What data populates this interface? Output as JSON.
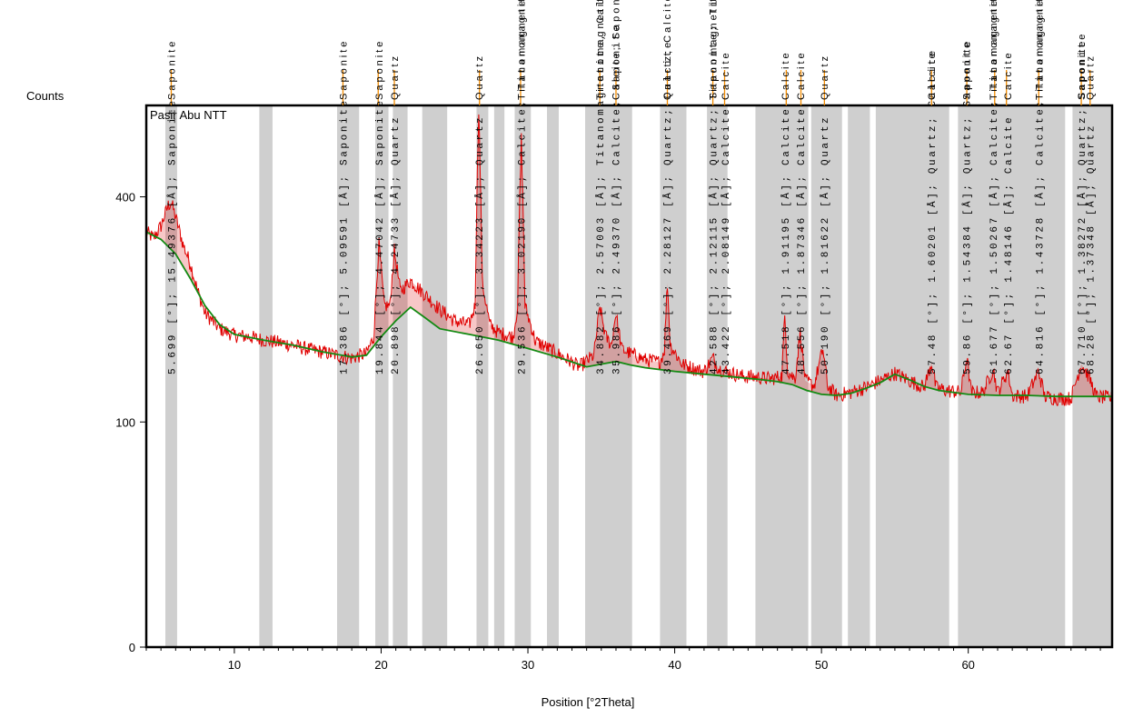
{
  "chart_data": {
    "type": "line",
    "title": "Pasir Abu NTT",
    "xlabel": "Position [°2Theta]",
    "ylabel": "Counts",
    "xlim": [
      4,
      69.8
    ],
    "y_scale": "sqrt",
    "ylim": [
      0,
      575
    ],
    "x_ticks": [
      10,
      20,
      30,
      40,
      50,
      60
    ],
    "y_ticks": [
      0,
      100,
      400
    ],
    "grid": false,
    "series": [
      {
        "role": "pattern",
        "color": "#e00000",
        "points": [
          [
            4,
            340
          ],
          [
            4.5,
            330
          ],
          [
            5,
            350
          ],
          [
            5.5,
            385
          ],
          [
            5.7,
            390
          ],
          [
            6,
            365
          ],
          [
            6.5,
            320
          ],
          [
            7,
            290
          ],
          [
            7.5,
            250
          ],
          [
            8,
            220
          ],
          [
            9,
            200
          ],
          [
            10,
            192
          ],
          [
            11,
            190
          ],
          [
            12,
            186
          ],
          [
            13,
            183
          ],
          [
            14,
            180
          ],
          [
            15,
            175
          ],
          [
            16,
            172
          ],
          [
            17,
            168
          ],
          [
            18,
            165
          ],
          [
            19,
            170
          ],
          [
            19.5,
            190
          ],
          [
            19.85,
            320
          ],
          [
            20.2,
            230
          ],
          [
            20.6,
            230
          ],
          [
            20.9,
            310
          ],
          [
            21.3,
            250
          ],
          [
            22,
            265
          ],
          [
            23,
            245
          ],
          [
            24,
            225
          ],
          [
            25,
            210
          ],
          [
            26,
            205
          ],
          [
            26.4,
            230
          ],
          [
            26.65,
            575
          ],
          [
            26.9,
            260
          ],
          [
            27.4,
            205
          ],
          [
            28,
            195
          ],
          [
            29,
            190
          ],
          [
            29.3,
            230
          ],
          [
            29.55,
            510
          ],
          [
            29.8,
            230
          ],
          [
            30.5,
            185
          ],
          [
            31.5,
            175
          ],
          [
            32.5,
            165
          ],
          [
            33.5,
            155
          ],
          [
            34.5,
            168
          ],
          [
            34.9,
            228
          ],
          [
            35.3,
            190
          ],
          [
            35.7,
            180
          ],
          [
            35.98,
            220
          ],
          [
            36.4,
            175
          ],
          [
            37,
            170
          ],
          [
            38,
            163
          ],
          [
            39,
            160
          ],
          [
            39.3,
            175
          ],
          [
            39.5,
            262
          ],
          [
            39.7,
            180
          ],
          [
            40.5,
            158
          ],
          [
            41.5,
            152
          ],
          [
            42,
            150
          ],
          [
            42.6,
            165
          ],
          [
            43,
            153
          ],
          [
            43.5,
            150
          ],
          [
            44.5,
            145
          ],
          [
            45.5,
            144
          ],
          [
            46.5,
            142
          ],
          [
            47.3,
            145
          ],
          [
            47.5,
            215
          ],
          [
            47.7,
            150
          ],
          [
            48.2,
            142
          ],
          [
            48.55,
            195
          ],
          [
            48.9,
            140
          ],
          [
            49.5,
            135
          ],
          [
            50.1,
            175
          ],
          [
            50.4,
            135
          ],
          [
            51,
            125
          ],
          [
            52,
            128
          ],
          [
            53,
            133
          ],
          [
            54,
            140
          ],
          [
            55,
            148
          ],
          [
            56,
            140
          ],
          [
            57,
            133
          ],
          [
            57.5,
            160
          ],
          [
            57.8,
            133
          ],
          [
            58.5,
            130
          ],
          [
            59.5,
            128
          ],
          [
            59.9,
            165
          ],
          [
            60.2,
            128
          ],
          [
            61,
            128
          ],
          [
            61.7,
            152
          ],
          [
            62,
            128
          ],
          [
            62.7,
            150
          ],
          [
            63,
            125
          ],
          [
            64,
            124
          ],
          [
            64.8,
            150
          ],
          [
            65.2,
            124
          ],
          [
            66,
            122
          ],
          [
            67,
            122
          ],
          [
            67.7,
            158
          ],
          [
            68.2,
            145
          ],
          [
            68.7,
            124
          ],
          [
            69.8,
            122
          ]
        ]
      },
      {
        "role": "background",
        "color": "#138a13",
        "points": [
          [
            4,
            340
          ],
          [
            5,
            328
          ],
          [
            6,
            305
          ],
          [
            7,
            268
          ],
          [
            8,
            230
          ],
          [
            9,
            205
          ],
          [
            10,
            193
          ],
          [
            12,
            186
          ],
          [
            14,
            180
          ],
          [
            16,
            172
          ],
          [
            18,
            166
          ],
          [
            19,
            168
          ],
          [
            20,
            190
          ],
          [
            21,
            210
          ],
          [
            22,
            228
          ],
          [
            23,
            214
          ],
          [
            24,
            200
          ],
          [
            26,
            193
          ],
          [
            28,
            186
          ],
          [
            30,
            176
          ],
          [
            32,
            166
          ],
          [
            34,
            155
          ],
          [
            35,
            158
          ],
          [
            36,
            161
          ],
          [
            37,
            157
          ],
          [
            38,
            154
          ],
          [
            40,
            150
          ],
          [
            42,
            147
          ],
          [
            44,
            144
          ],
          [
            46,
            141
          ],
          [
            47,
            139
          ],
          [
            48,
            136
          ],
          [
            49,
            130
          ],
          [
            50,
            126
          ],
          [
            51,
            125
          ],
          [
            52,
            127
          ],
          [
            53,
            132
          ],
          [
            54,
            138
          ],
          [
            55,
            147
          ],
          [
            56,
            141
          ],
          [
            57,
            134
          ],
          [
            58,
            130
          ],
          [
            60,
            126
          ],
          [
            62,
            125
          ],
          [
            64,
            125
          ],
          [
            66,
            124
          ],
          [
            68,
            124
          ],
          [
            69.8,
            124
          ]
        ]
      }
    ],
    "excluded_ranges": [
      [
        5.3,
        6.1
      ],
      [
        11.7,
        12.6
      ],
      [
        17,
        18.5
      ],
      [
        19.6,
        20.5
      ],
      [
        20.8,
        21.8
      ],
      [
        22.8,
        24.5
      ],
      [
        26.5,
        27.3
      ],
      [
        27.7,
        28.4
      ],
      [
        29.1,
        30.2
      ],
      [
        31.3,
        32.1
      ],
      [
        33.9,
        37.1
      ],
      [
        39,
        40.8
      ],
      [
        42.2,
        43.6
      ],
      [
        45.5,
        49.1
      ],
      [
        49.3,
        51.4
      ],
      [
        51.8,
        53.3
      ],
      [
        53.7,
        58.7
      ],
      [
        59.3,
        66.6
      ],
      [
        67.1,
        69.8
      ]
    ],
    "reference_ticks": [
      5.7,
      17.4,
      19.8,
      20.9,
      26.7,
      29.5,
      34.9,
      36.0,
      39.5,
      42.6,
      43.4,
      47.6,
      48.6,
      50.2,
      57.5,
      59.9,
      61.8,
      62.6,
      64.8,
      67.7,
      68.3
    ],
    "phase_labels": [
      {
        "x": 5.699,
        "text": "Saponite"
      },
      {
        "x": 17.386,
        "text": "Saponite"
      },
      {
        "x": 19.844,
        "text": "Saponite"
      },
      {
        "x": 20.898,
        "text": "Quartz"
      },
      {
        "x": 26.65,
        "text": "Quartz"
      },
      {
        "x": 29.536,
        "text": "Titanomagnetite"
      },
      {
        "x": 34.882,
        "text": "Titanomagnetite,"
      },
      {
        "x": 35.986,
        "text": "Calcite; Saponite"
      },
      {
        "x": 39.469,
        "text": "Quartz; Calcite"
      },
      {
        "x": 42.588,
        "text": "Titanomagnetite"
      },
      {
        "x": 43.422,
        "text": "Calcite"
      },
      {
        "x": 47.518,
        "text": "Calcite"
      },
      {
        "x": 48.556,
        "text": "Calcite"
      },
      {
        "x": 50.19,
        "text": "Quartz"
      },
      {
        "x": 57.48,
        "text": "Calcite"
      },
      {
        "x": 59.86,
        "text": "Saponite"
      },
      {
        "x": 61.677,
        "text": "Titanomagnetite"
      },
      {
        "x": 62.67,
        "text": "Calcite"
      },
      {
        "x": 64.816,
        "text": "Titanomagnetite"
      },
      {
        "x": 67.71,
        "text": "Saponite"
      },
      {
        "x": 68.28,
        "text": "Quartz"
      }
    ],
    "peak_labels": [
      {
        "x": 5.699,
        "text": "5.699 [°]; 15.49376 [Å]; Saponite"
      },
      {
        "x": 17.386,
        "text": "17.386 [°]; 5.09591 [Å]; Saponite"
      },
      {
        "x": 19.844,
        "text": "19.844 [°]; 4.47042 [Å]; Saponite"
      },
      {
        "x": 20.898,
        "text": "20.898 [°]; 4.24733 [Å]; Quartz"
      },
      {
        "x": 26.65,
        "text": "26.650 [°]; 3.34223 [Å]; Quartz"
      },
      {
        "x": 29.536,
        "text": "29.536 [°]; 3.02190 [Å]; Calcite; Titanomagnetite"
      },
      {
        "x": 34.882,
        "text": "34.882 [°]; 2.57003 [Å]; Titanomagnetite, Calcite"
      },
      {
        "x": 35.986,
        "text": "35.986 [°]; 2.49370 [Å]; Calcite; Saponite"
      },
      {
        "x": 39.469,
        "text": "39.469 [°]; 2.28127 [Å]; Quartz; Calcite"
      },
      {
        "x": 42.588,
        "text": "42.588 [°]; 2.12115 [Å]; Quartz; Saponite; Titanomagnetite"
      },
      {
        "x": 43.422,
        "text": "43.422 [°]; 2.08149 [Å]; Calcite"
      },
      {
        "x": 47.518,
        "text": "47.518 [°]; 1.91195 [Å]; Calcite"
      },
      {
        "x": 48.556,
        "text": "48.556 [°]; 1.87346 [Å]; Calcite"
      },
      {
        "x": 50.19,
        "text": "50.190 [°]; 1.81622 [Å]; Quartz"
      },
      {
        "x": 57.48,
        "text": "57.48 [°]; 1.60201 [Å]; Quartz; Calcite"
      },
      {
        "x": 59.86,
        "text": "59.86 [°]; 1.54384 [Å]; Quartz; Saponite"
      },
      {
        "x": 61.677,
        "text": "61.677 [°]; 1.50267 [Å]; Calcite; Titanomagnetite"
      },
      {
        "x": 62.67,
        "text": "62.67 [°]; 1.48146 [Å]; Calcite"
      },
      {
        "x": 64.816,
        "text": "64.816 [°]; 1.43728 [Å]; Calcite; Titanomagnetite"
      },
      {
        "x": 67.71,
        "text": "67.710 [°]; 1.38272 [Å]; Quartz; Saponite"
      },
      {
        "x": 68.28,
        "text": "68.28 [°]; 1.37348 [Å]; Quartz"
      }
    ]
  }
}
